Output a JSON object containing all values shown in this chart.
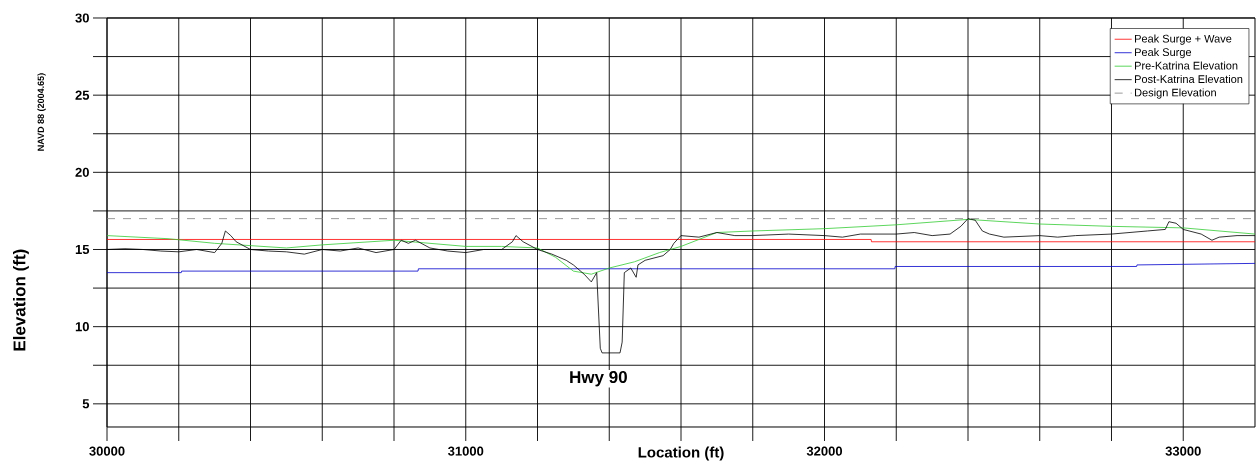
{
  "chart_data": {
    "type": "line",
    "xlabel": "Location (ft)",
    "ylabel": "Elevation (ft)",
    "annotations": [
      "NAVD 88 (2004.65)",
      "Hwy 90"
    ],
    "xlim": [
      30000,
      33200
    ],
    "ylim": [
      3.5,
      30
    ],
    "xticks": [
      30000,
      {
        "value": 30200,
        "label": null
      },
      {
        "value": 30400,
        "label": null
      },
      {
        "value": 30600,
        "label": null
      },
      {
        "value": 30800,
        "label": null
      },
      31000,
      {
        "value": 31200,
        "label": null
      },
      {
        "value": 31400,
        "label": null
      },
      {
        "value": 31600,
        "label": null
      },
      {
        "value": 31800,
        "label": null
      },
      32000,
      {
        "value": 32200,
        "label": null
      },
      {
        "value": 32400,
        "label": null
      },
      {
        "value": 32600,
        "label": null
      },
      {
        "value": 32800,
        "label": null
      },
      33000
    ],
    "yticks": [
      5,
      {
        "value": 7.5,
        "label": null
      },
      10,
      {
        "value": 12.5,
        "label": null
      },
      15,
      {
        "value": 17.5,
        "label": null
      },
      20,
      {
        "value": 22.5,
        "label": null
      },
      25,
      {
        "value": 27.5,
        "label": null
      },
      30
    ],
    "grid": true,
    "legend": "top right",
    "series": [
      {
        "name": "Peak Surge + Wave",
        "color": "#ff0000",
        "x": [
          30000,
          32130,
          32131,
          33200
        ],
        "values": [
          15.65,
          15.65,
          15.5,
          15.5
        ]
      },
      {
        "name": "Peak Surge",
        "color": "#0000cc",
        "x": [
          30000,
          30207,
          30208,
          30867,
          30868,
          32196,
          32197,
          32870,
          32871,
          33200
        ],
        "values": [
          13.5,
          13.5,
          13.6,
          13.6,
          13.75,
          13.75,
          13.9,
          13.9,
          14.0,
          14.1
        ]
      },
      {
        "name": "Pre-Katrina Elevation",
        "color": "#33cc33",
        "x": [
          30000,
          30170,
          30300,
          30500,
          30600,
          30800,
          31000,
          31100,
          31200,
          31250,
          31300,
          31350,
          31400,
          31470,
          31540,
          31600,
          31700,
          31800,
          32000,
          32200,
          32400,
          32600,
          32800,
          33000,
          33200
        ],
        "values": [
          15.9,
          15.7,
          15.4,
          15.1,
          15.3,
          15.6,
          15.2,
          15.2,
          15.1,
          14.5,
          13.6,
          13.4,
          13.8,
          14.2,
          14.8,
          15.2,
          16.1,
          16.2,
          16.35,
          16.6,
          16.95,
          16.65,
          16.5,
          16.4,
          16.0
        ]
      },
      {
        "name": "Post-Katrina Elevation",
        "color": "#000000",
        "x": [
          30000,
          30050,
          30100,
          30150,
          30200,
          30250,
          30300,
          30320,
          30330,
          30345,
          30360,
          30400,
          30450,
          30500,
          30550,
          30600,
          30650,
          30700,
          30750,
          30800,
          30820,
          30840,
          30860,
          30900,
          30950,
          31000,
          31050,
          31100,
          31130,
          31140,
          31160,
          31200,
          31240,
          31280,
          31300,
          31330,
          31350,
          31365,
          31375,
          31380,
          31430,
          31436,
          31442,
          31460,
          31475,
          31480,
          31500,
          31550,
          31570,
          31580,
          31600,
          31650,
          31700,
          31750,
          31800,
          31900,
          32000,
          32050,
          32100,
          32200,
          32250,
          32300,
          32350,
          32380,
          32400,
          32420,
          32440,
          32460,
          32500,
          32600,
          32650,
          32700,
          32800,
          32900,
          32950,
          32960,
          32980,
          33000,
          33050,
          33080,
          33100,
          33150,
          33200
        ],
        "values": [
          15.0,
          15.05,
          15.0,
          14.9,
          14.85,
          15.0,
          14.8,
          15.4,
          16.2,
          15.9,
          15.5,
          15.0,
          14.9,
          14.85,
          14.7,
          15.0,
          14.9,
          15.1,
          14.8,
          15.0,
          15.6,
          15.4,
          15.6,
          15.1,
          14.9,
          14.8,
          15.0,
          15.0,
          15.5,
          15.9,
          15.5,
          15.0,
          14.7,
          14.3,
          14.0,
          13.4,
          12.9,
          13.5,
          8.6,
          8.3,
          8.3,
          9.0,
          13.5,
          13.8,
          13.2,
          14.0,
          14.3,
          14.6,
          15.0,
          15.4,
          15.9,
          15.8,
          16.1,
          15.9,
          15.9,
          16.0,
          15.9,
          15.8,
          16.0,
          16.0,
          16.1,
          15.9,
          16.0,
          16.5,
          17.0,
          16.9,
          16.2,
          16.0,
          15.8,
          15.9,
          15.8,
          15.9,
          16.0,
          16.2,
          16.3,
          16.8,
          16.7,
          16.3,
          16.0,
          15.6,
          15.8,
          15.9,
          15.9
        ]
      },
      {
        "name": "Design Elevation",
        "color": "#808080",
        "line_style": "dashed",
        "x": [
          30000,
          33200
        ],
        "values": [
          17.0,
          17.0
        ]
      }
    ]
  }
}
